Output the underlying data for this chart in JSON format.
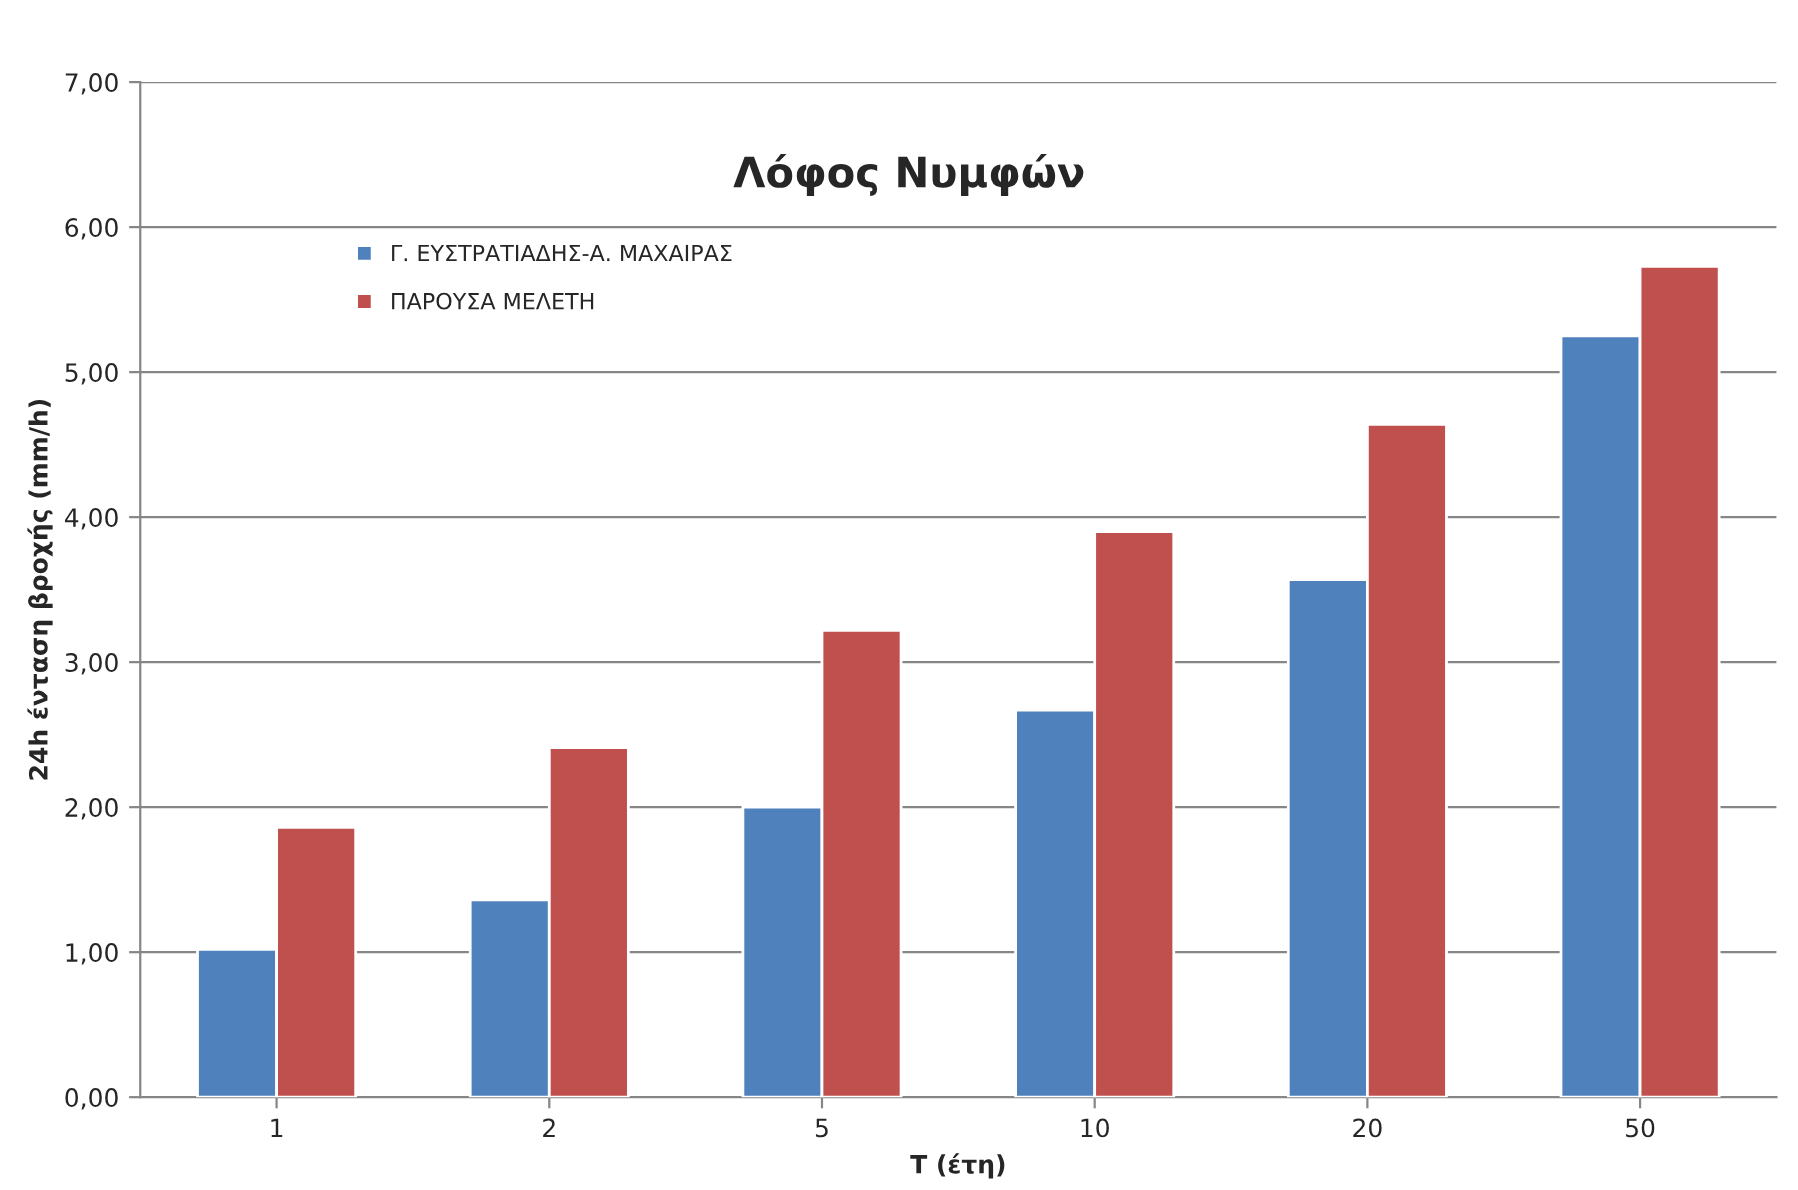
{
  "chart_data": {
    "type": "bar",
    "title": "Λόφος Νυμφών",
    "xlabel": "T (έτη)",
    "ylabel": "24h ένταση βροχής (mm/h)",
    "categories": [
      "1",
      "2",
      "5",
      "10",
      "20",
      "50"
    ],
    "series": [
      {
        "name": "Γ. ΕΥΣΤΡΑΤΙΑΔΗΣ-Α. ΜΑΧΑΙΡΑΣ",
        "color": "#4f81bd",
        "values": [
          1.02,
          1.36,
          2.0,
          2.67,
          3.57,
          5.25
        ]
      },
      {
        "name": "ΠΑΡΟΥΣΑ ΜΕΛΕΤΗ",
        "color": "#c0504d",
        "values": [
          1.86,
          2.41,
          3.22,
          3.9,
          4.64,
          5.73
        ]
      }
    ],
    "ylim": [
      0,
      7
    ],
    "yticks": [
      {
        "value": 0,
        "label": "0,00"
      },
      {
        "value": 1,
        "label": "1,00"
      },
      {
        "value": 2,
        "label": "2,00"
      },
      {
        "value": 3,
        "label": "3,00"
      },
      {
        "value": 4,
        "label": "4,00"
      },
      {
        "value": 5,
        "label": "5,00"
      },
      {
        "value": 6,
        "label": "6,00"
      },
      {
        "value": 7,
        "label": "7,00"
      }
    ],
    "grid": "y",
    "legend": "top left"
  }
}
